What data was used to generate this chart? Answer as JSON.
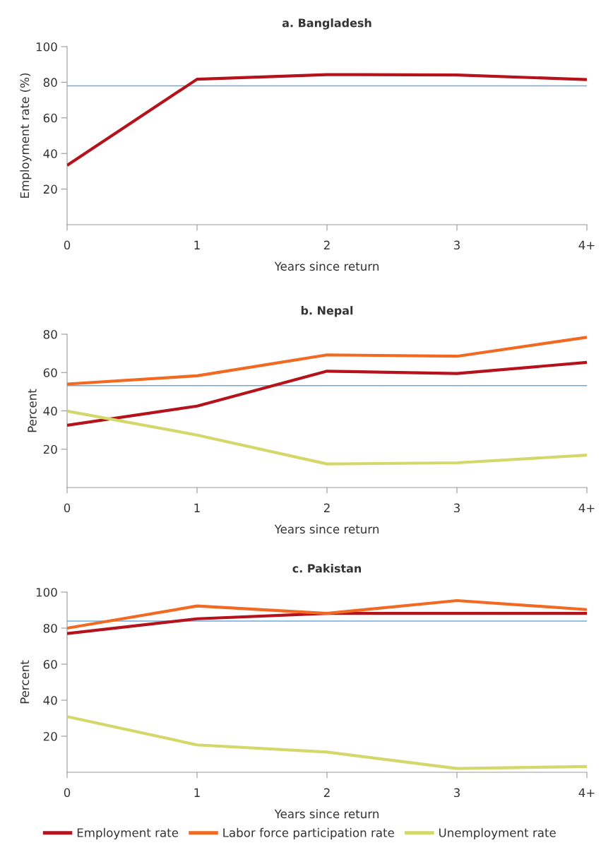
{
  "chart_data": [
    {
      "type": "line",
      "title": "a. Bangladesh",
      "xlabel": "Years since return",
      "ylabel": "Employment rate (%)",
      "categories": [
        "0",
        "1",
        "2",
        "3",
        "4+"
      ],
      "ylim": [
        0,
        100
      ],
      "yticks": [
        20,
        40,
        60,
        80,
        100
      ],
      "grid": false,
      "legend": false,
      "series": [
        {
          "color": "#b5121b",
          "values": [
            33.3,
            81.7,
            84.3,
            84.1,
            81.5
          ]
        }
      ],
      "ref_lines": [
        {
          "axis": "y",
          "value": 78,
          "color": "#6fa8dc"
        }
      ]
    },
    {
      "type": "line",
      "title": "b. Nepal",
      "xlabel": "Years since return",
      "ylabel": "Percent",
      "categories": [
        "0",
        "1",
        "2",
        "3",
        "4+"
      ],
      "ylim": [
        0,
        80
      ],
      "yticks": [
        20,
        40,
        60,
        80
      ],
      "grid": false,
      "legend": false,
      "series": [
        {
          "color": "#b5121b",
          "values": [
            32.5,
            42.5,
            60.7,
            59.5,
            65.3
          ]
        },
        {
          "color": "#f26a21",
          "values": [
            54.0,
            58.3,
            69.2,
            68.5,
            78.4
          ]
        },
        {
          "color": "#d4d86a",
          "values": [
            39.9,
            27.4,
            12.3,
            12.9,
            16.9
          ]
        }
      ],
      "ref_lines": [
        {
          "axis": "y",
          "value": 53.2,
          "color": "#6fa8dc"
        }
      ]
    },
    {
      "type": "line",
      "title": "c. Pakistan",
      "xlabel": "Years since return",
      "ylabel": "Percent",
      "categories": [
        "0",
        "1",
        "2",
        "3",
        "4+"
      ],
      "ylim": [
        0,
        100
      ],
      "yticks": [
        20,
        40,
        60,
        80,
        100
      ],
      "grid": false,
      "legend": "bottom",
      "series": [
        {
          "name": "Employment rate",
          "color": "#b5121b",
          "values": [
            77.0,
            85.2,
            88.2,
            88.2,
            88.2
          ]
        },
        {
          "name": "Labor force participation rate",
          "color": "#f26a21",
          "values": [
            80.0,
            92.3,
            88.2,
            95.3,
            90.3
          ]
        },
        {
          "name": "Unemployment rate",
          "color": "#d4d86a",
          "values": [
            30.9,
            15.2,
            11.2,
            2.1,
            3.2
          ]
        }
      ],
      "ref_lines": [
        {
          "axis": "y",
          "value": 83.9,
          "color": "#6fa8dc"
        }
      ]
    }
  ]
}
